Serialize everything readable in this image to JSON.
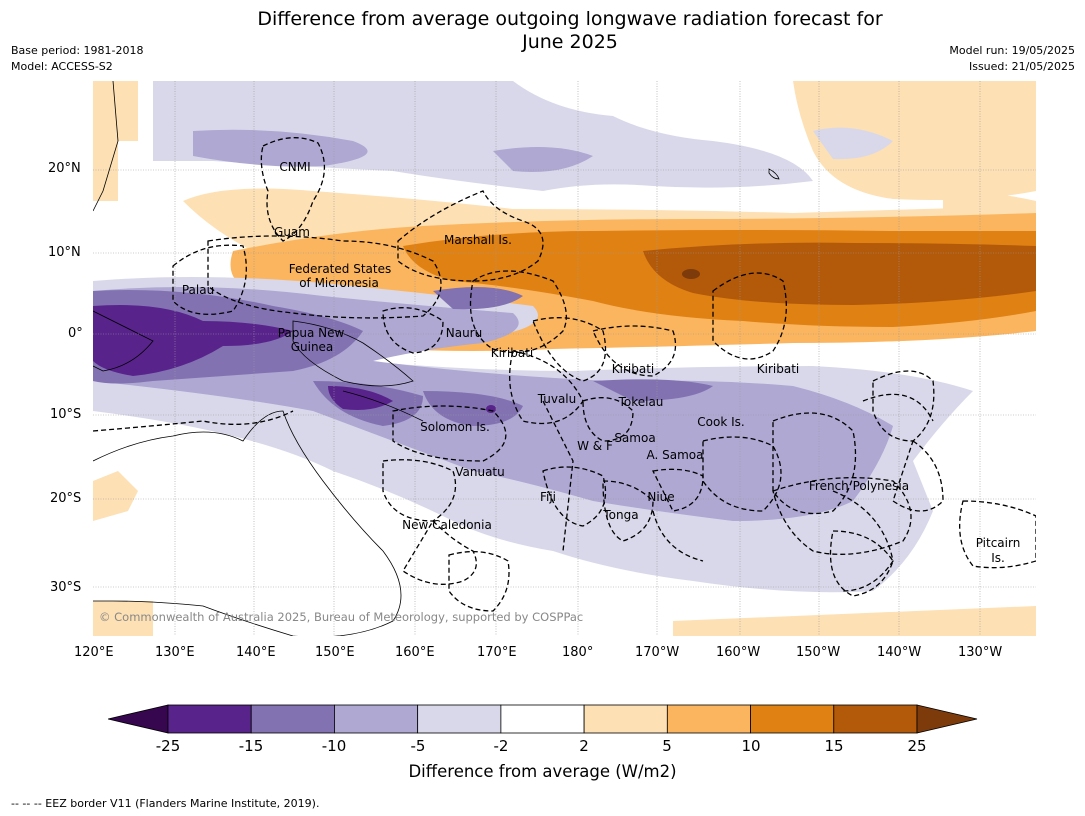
{
  "header": {
    "title_line1": "Difference from average outgoing longwave radiation forecast for",
    "title_line2": "June 2025",
    "base_period": "Base period: 1981-2018",
    "model": "Model: ACCESS-S2",
    "model_run": "Model run: 19/05/2025",
    "issued": "Issued: 21/05/2025"
  },
  "map": {
    "lat_ticks": [
      "20°N",
      "10°N",
      "0°",
      "10°S",
      "20°S",
      "30°S"
    ],
    "lon_ticks": [
      "120°E",
      "130°E",
      "140°E",
      "150°E",
      "160°E",
      "170°E",
      "180°",
      "170°W",
      "160°W",
      "150°W",
      "140°W",
      "130°W"
    ],
    "places": {
      "cnmi": "CNMI",
      "guam": "Guam",
      "marshall": "Marshall Is.",
      "fsm1": "Federated States",
      "fsm2": "of Micronesia",
      "palau": "Palau",
      "png1": "Papua New",
      "png2": "Guinea",
      "nauru": "Nauru",
      "kiribati_w": "Kiribati",
      "kiribati_c": "Kiribati",
      "kiribati_e": "Kiribati",
      "tuvalu": "Tuvalu",
      "tokelau": "Tokelau",
      "cook": "Cook Is.",
      "solomon": "Solomon Is.",
      "wf": "W & F",
      "samoa": "Samoa",
      "asamoa": "A. Samoa",
      "vanuatu": "Vanuatu",
      "fiji": "Fiji",
      "niue": "Niue",
      "tonga": "Tonga",
      "newcal": "New Caledonia",
      "frpoly": "French Polynesia",
      "pitcairn1": "Pitcairn",
      "pitcairn2": "Is."
    },
    "copyright": "© Commonwealth of Australia 2025, Bureau of Meteorology, supported by COSPPac"
  },
  "colorbar": {
    "labels": [
      "-25",
      "-15",
      "-10",
      "-5",
      "-2",
      "2",
      "5",
      "10",
      "15",
      "25"
    ],
    "colors": [
      "#59238c",
      "#8272b2",
      "#aea8d2",
      "#d8d8ea",
      "#ffffff",
      "#fde0b4",
      "#fbb55f",
      "#e08113",
      "#b3590a"
    ],
    "under_color": "#36074f",
    "over_color": "#7d3a0b",
    "title": "Difference from average (W/m2)"
  },
  "footnote": "--  --  -- EEZ border V11 (Flanders Marine Institute, 2019)."
}
